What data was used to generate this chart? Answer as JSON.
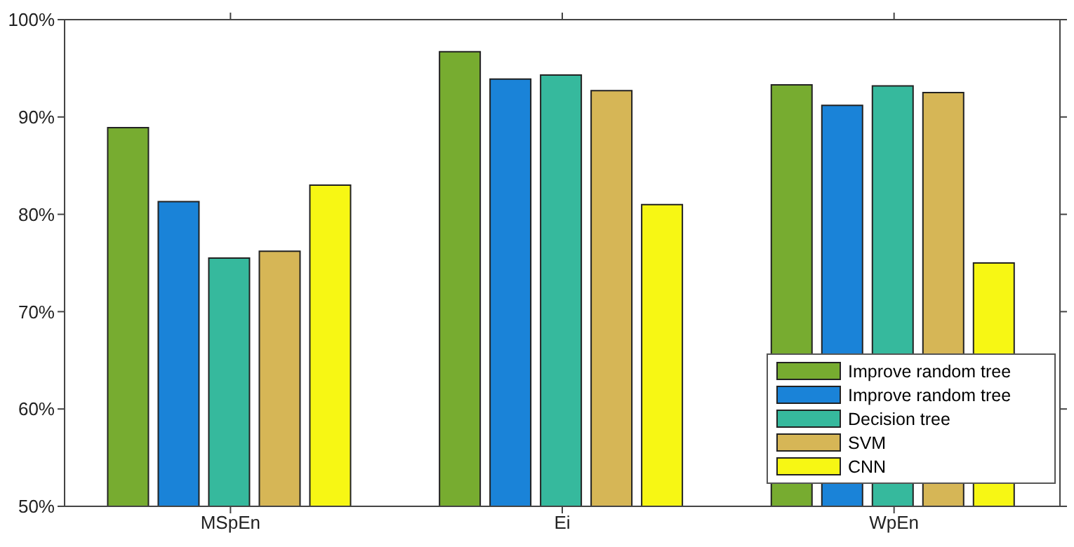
{
  "chart_data": {
    "type": "bar",
    "categories": [
      "MSpEn",
      "Ei",
      "WpEn"
    ],
    "series": [
      {
        "name": "Improve random tree",
        "color": "#77ac30",
        "values": [
          88.9,
          96.7,
          93.3
        ]
      },
      {
        "name": "Improve random tree",
        "color": "#1a83d8",
        "values": [
          81.3,
          93.9,
          91.2
        ]
      },
      {
        "name": "Decision tree",
        "color": "#36b99d",
        "values": [
          75.5,
          94.3,
          93.2
        ]
      },
      {
        "name": "SVM",
        "color": "#d6b656",
        "values": [
          76.2,
          92.7,
          92.5
        ]
      },
      {
        "name": "CNN",
        "color": "#f7f714",
        "values": [
          83.0,
          81.0,
          75.0
        ]
      }
    ],
    "ylim": [
      50,
      100
    ],
    "yticks": [
      {
        "value": 50,
        "label": "50%"
      },
      {
        "value": 60,
        "label": "60%"
      },
      {
        "value": 70,
        "label": "70%"
      },
      {
        "value": 80,
        "label": "80%"
      },
      {
        "value": 90,
        "label": "90%"
      },
      {
        "value": 100,
        "label": "100%"
      }
    ],
    "grid": false,
    "legend": "bottom right"
  }
}
